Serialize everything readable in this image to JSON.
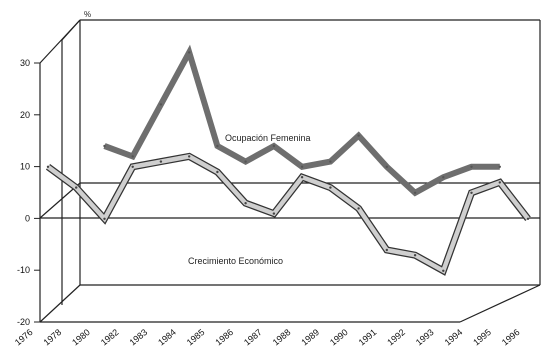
{
  "chart_data": {
    "type": "line",
    "title": "",
    "unit_label": "%",
    "xlabel": "",
    "ylabel": "",
    "ylim": [
      -20,
      30
    ],
    "y_ticks": [
      "30",
      "20",
      "10",
      "0",
      "-10",
      "-20"
    ],
    "x": [
      "1976",
      "1978",
      "1980",
      "1982",
      "1983",
      "1984",
      "1985",
      "1986",
      "1987",
      "1988",
      "1989",
      "1990",
      "1991",
      "1992",
      "1993",
      "1994",
      "1995",
      "1996"
    ],
    "series": [
      {
        "name": "Ocupación Femenina",
        "values": [
          null,
          null,
          10,
          8,
          18,
          28,
          10,
          7,
          10,
          6,
          7,
          12,
          6,
          1,
          4,
          6,
          6,
          null
        ],
        "color": "#6e6e6e"
      },
      {
        "name": "Crecimiento Económico",
        "values": [
          6,
          2,
          -4,
          6,
          7,
          8,
          5,
          -1,
          -3,
          4,
          2,
          -2,
          -10,
          -11,
          -14,
          1,
          3,
          -4
        ],
        "color": "#cfcfcf"
      }
    ],
    "legend": "inline labels",
    "grid": false
  }
}
